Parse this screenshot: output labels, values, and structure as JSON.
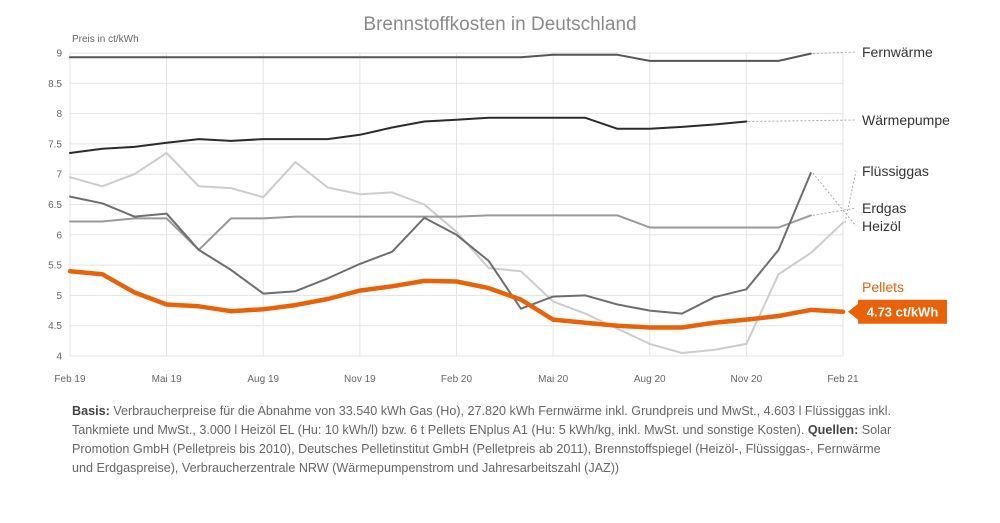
{
  "chart_data": {
    "type": "line",
    "title": "Brennstoffkosten in Deutschland",
    "ylabel": "Preis in ct/kWh",
    "ylim": [
      4,
      9
    ],
    "yticks": [
      "4",
      "4.5",
      "5",
      "5.5",
      "6",
      "6.5",
      "7",
      "7.5",
      "8",
      "8.5",
      "9"
    ],
    "xlim": [
      0,
      24
    ],
    "xticks": [
      {
        "label": "Feb 19",
        "month": 0
      },
      {
        "label": "Mai 19",
        "month": 3
      },
      {
        "label": "Aug 19",
        "month": 6
      },
      {
        "label": "Nov 19",
        "month": 9
      },
      {
        "label": "Feb 20",
        "month": 12
      },
      {
        "label": "Mai 20",
        "month": 15
      },
      {
        "label": "Aug 20",
        "month": 18
      },
      {
        "label": "Nov 20",
        "month": 21
      },
      {
        "label": "Feb 21",
        "month": 24
      }
    ],
    "grid": true,
    "series": [
      {
        "name": "Fernwärme",
        "color": "#555555",
        "x": [
          0,
          1,
          2,
          3,
          4,
          5,
          6,
          7,
          8,
          9,
          10,
          11,
          12,
          13,
          14,
          15,
          16,
          17,
          18,
          19,
          20,
          21,
          22,
          23
        ],
        "values": [
          8.93,
          8.93,
          8.93,
          8.93,
          8.93,
          8.93,
          8.93,
          8.93,
          8.93,
          8.93,
          8.93,
          8.93,
          8.93,
          8.93,
          8.93,
          8.97,
          8.97,
          8.97,
          8.87,
          8.87,
          8.87,
          8.87,
          8.87,
          8.99
        ]
      },
      {
        "name": "Wärmepumpe",
        "color": "#2b2b2b",
        "x": [
          0,
          1,
          2,
          3,
          4,
          5,
          6,
          7,
          8,
          9,
          10,
          11,
          12,
          13,
          14,
          15,
          16,
          17,
          18,
          19,
          20,
          21
        ],
        "values": [
          7.35,
          7.42,
          7.45,
          7.52,
          7.58,
          7.55,
          7.58,
          7.58,
          7.58,
          7.65,
          7.77,
          7.87,
          7.9,
          7.93,
          7.93,
          7.93,
          7.93,
          7.75,
          7.75,
          7.78,
          7.82,
          7.87
        ]
      },
      {
        "name": "Flüssiggas",
        "color": "#cccccc",
        "x": [
          0,
          1,
          2,
          3,
          4,
          5,
          6,
          7,
          8,
          9,
          10,
          11,
          12,
          13,
          14,
          15,
          16,
          17,
          18,
          19,
          20,
          21,
          22,
          23,
          24
        ],
        "values": [
          6.95,
          6.8,
          7.0,
          7.35,
          6.8,
          6.77,
          6.62,
          7.2,
          6.78,
          6.67,
          6.7,
          6.5,
          6.05,
          5.45,
          5.4,
          4.9,
          4.7,
          4.45,
          4.2,
          4.05,
          4.1,
          4.2,
          5.35,
          5.7,
          6.2
        ]
      },
      {
        "name": "Erdgas",
        "color": "#999999",
        "x": [
          0,
          1,
          2,
          3,
          4,
          5,
          6,
          7,
          8,
          9,
          10,
          11,
          12,
          13,
          14,
          15,
          16,
          17,
          18,
          19,
          20,
          21,
          22,
          23
        ],
        "values": [
          6.22,
          6.22,
          6.27,
          6.27,
          5.75,
          6.27,
          6.27,
          6.3,
          6.3,
          6.3,
          6.3,
          6.3,
          6.3,
          6.32,
          6.32,
          6.32,
          6.32,
          6.32,
          6.12,
          6.12,
          6.12,
          6.12,
          6.12,
          6.32
        ]
      },
      {
        "name": "Heizöl",
        "color": "#6e6e6e",
        "x": [
          0,
          1,
          2,
          3,
          4,
          5,
          6,
          7,
          8,
          9,
          10,
          11,
          12,
          13,
          14,
          15,
          16,
          17,
          18,
          19,
          20,
          21,
          22,
          23
        ],
        "values": [
          6.63,
          6.52,
          6.3,
          6.35,
          5.75,
          5.42,
          5.03,
          5.07,
          5.28,
          5.52,
          5.72,
          6.28,
          6.0,
          5.57,
          4.78,
          4.98,
          5.0,
          4.85,
          4.75,
          4.7,
          4.97,
          5.1,
          5.75,
          7.02
        ]
      },
      {
        "name": "Pellets",
        "color": "#e8620a",
        "x": [
          0,
          1,
          2,
          3,
          4,
          5,
          6,
          7,
          8,
          9,
          10,
          11,
          12,
          13,
          14,
          15,
          16,
          17,
          18,
          19,
          20,
          21,
          22,
          23,
          24
        ],
        "values": [
          5.4,
          5.35,
          5.05,
          4.85,
          4.82,
          4.74,
          4.77,
          4.84,
          4.94,
          5.08,
          5.15,
          5.24,
          5.23,
          5.12,
          4.93,
          4.6,
          4.55,
          4.5,
          4.47,
          4.47,
          4.55,
          4.6,
          4.66,
          4.76,
          4.73
        ]
      }
    ],
    "callout": {
      "text": "4.73 ct/kWh",
      "color": "#e8620a"
    }
  },
  "footnote": {
    "basis_label": "Basis:",
    "basis_text": "Verbraucherpreise für die Abnahme von 33.540 kWh Gas (Ho), 27.820 kWh Fernwärme inkl. Grundpreis und MwSt., 4.603 l Flüssiggas inkl. Tankmiete und MwSt., 3.000 l Heizöl EL (Hu: 10 kWh/l) bzw. 6 t Pellets ENplus A1 (Hu: 5 kWh/kg, inkl. MwSt. und sonstige Kosten).",
    "sources_label": "Quellen:",
    "sources_text": "Solar Promotion GmbH (Pelletpreis bis 2010), Deutsches Pelletinstitut GmbH (Pelletpreis ab 2011), Brennstoffspiegel (Heizöl-, Flüssiggas-, Fernwärme und Erdgaspreise), Verbraucherzentrale NRW (Wärmepumpenstrom und Jahresarbeitszahl (JAZ))"
  }
}
